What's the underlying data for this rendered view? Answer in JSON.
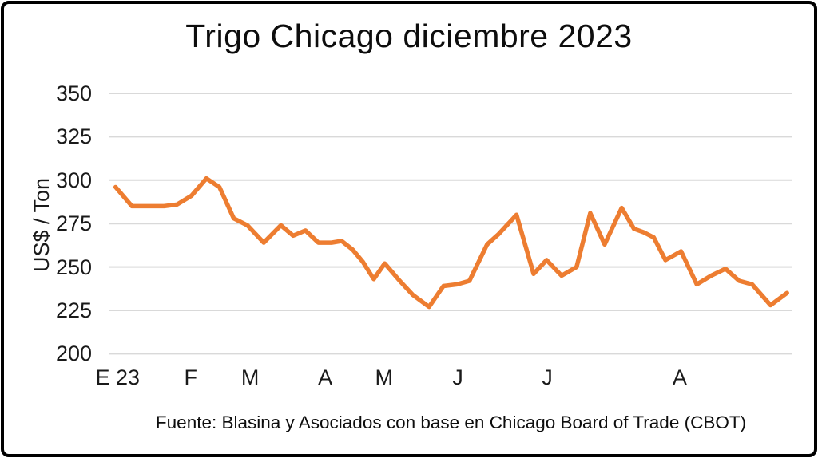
{
  "chart_data": {
    "type": "line",
    "title": "Trigo Chicago diciembre 2023",
    "ylabel": "US$ / Ton",
    "xlabel": "",
    "ylim": [
      200,
      350
    ],
    "yticks": [
      350,
      325,
      300,
      275,
      250,
      225,
      200
    ],
    "grid": "horizontal-only",
    "legend_position": "none",
    "colors": {
      "line": "#ED7D31",
      "grid": "#D9D9D9",
      "text": "#1a1a1a"
    },
    "x_ticks": [
      {
        "label": "E 23",
        "pos": 0.012
      },
      {
        "label": "F",
        "pos": 0.119
      },
      {
        "label": "M",
        "pos": 0.206
      },
      {
        "label": "A",
        "pos": 0.316
      },
      {
        "label": "M",
        "pos": 0.402
      },
      {
        "label": "J",
        "pos": 0.51
      },
      {
        "label": "J",
        "pos": 0.641
      },
      {
        "label": "A",
        "pos": 0.835
      }
    ],
    "points": [
      {
        "pos": 0.009,
        "value": 296
      },
      {
        "pos": 0.033,
        "value": 285
      },
      {
        "pos": 0.056,
        "value": 285
      },
      {
        "pos": 0.08,
        "value": 285
      },
      {
        "pos": 0.099,
        "value": 286
      },
      {
        "pos": 0.12,
        "value": 291
      },
      {
        "pos": 0.142,
        "value": 301
      },
      {
        "pos": 0.161,
        "value": 296
      },
      {
        "pos": 0.182,
        "value": 278
      },
      {
        "pos": 0.202,
        "value": 274
      },
      {
        "pos": 0.226,
        "value": 264
      },
      {
        "pos": 0.251,
        "value": 274
      },
      {
        "pos": 0.269,
        "value": 268
      },
      {
        "pos": 0.287,
        "value": 271
      },
      {
        "pos": 0.306,
        "value": 264
      },
      {
        "pos": 0.325,
        "value": 264
      },
      {
        "pos": 0.34,
        "value": 265
      },
      {
        "pos": 0.356,
        "value": 260
      },
      {
        "pos": 0.371,
        "value": 253
      },
      {
        "pos": 0.387,
        "value": 243
      },
      {
        "pos": 0.403,
        "value": 252
      },
      {
        "pos": 0.425,
        "value": 242
      },
      {
        "pos": 0.444,
        "value": 234
      },
      {
        "pos": 0.468,
        "value": 227
      },
      {
        "pos": 0.489,
        "value": 239
      },
      {
        "pos": 0.509,
        "value": 240
      },
      {
        "pos": 0.527,
        "value": 242
      },
      {
        "pos": 0.553,
        "value": 263
      },
      {
        "pos": 0.57,
        "value": 269
      },
      {
        "pos": 0.596,
        "value": 280
      },
      {
        "pos": 0.621,
        "value": 246
      },
      {
        "pos": 0.64,
        "value": 254
      },
      {
        "pos": 0.662,
        "value": 245
      },
      {
        "pos": 0.684,
        "value": 250
      },
      {
        "pos": 0.704,
        "value": 281
      },
      {
        "pos": 0.725,
        "value": 263
      },
      {
        "pos": 0.75,
        "value": 284
      },
      {
        "pos": 0.768,
        "value": 272
      },
      {
        "pos": 0.782,
        "value": 270
      },
      {
        "pos": 0.797,
        "value": 267
      },
      {
        "pos": 0.814,
        "value": 254
      },
      {
        "pos": 0.837,
        "value": 259
      },
      {
        "pos": 0.86,
        "value": 240
      },
      {
        "pos": 0.881,
        "value": 245
      },
      {
        "pos": 0.902,
        "value": 249
      },
      {
        "pos": 0.922,
        "value": 242
      },
      {
        "pos": 0.941,
        "value": 240
      },
      {
        "pos": 0.968,
        "value": 228
      },
      {
        "pos": 0.992,
        "value": 235
      }
    ],
    "source": "Fuente: Blasina y Asociados con base en Chicago Board of Trade (CBOT)"
  }
}
